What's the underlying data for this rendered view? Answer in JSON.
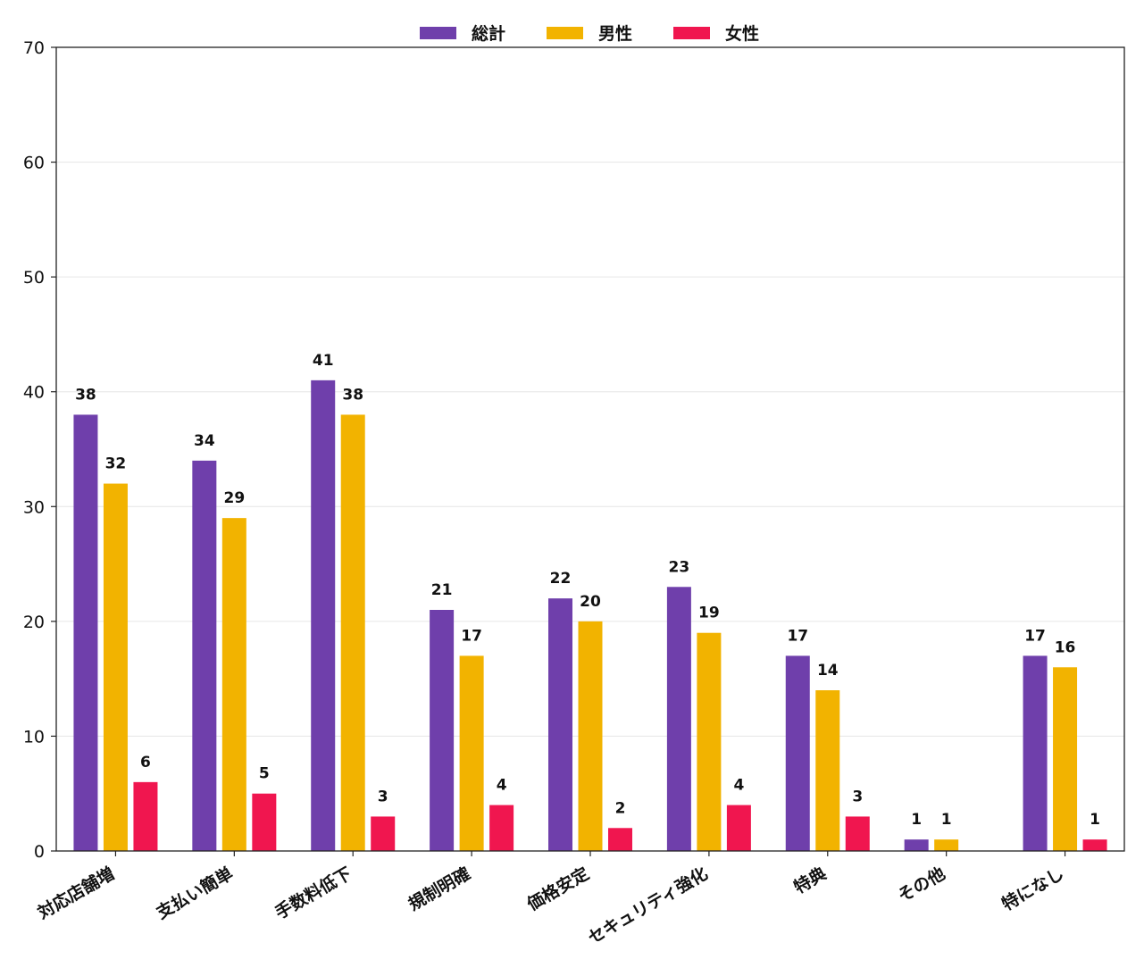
{
  "chart_data": {
    "type": "bar",
    "title": "",
    "xlabel": "",
    "ylabel": "",
    "categories": [
      "対応店舗増",
      "支払い簡単",
      "手数料低下",
      "規制明確",
      "価格安定",
      "セキュリティ強化",
      "特典",
      "その他",
      "特になし"
    ],
    "series": [
      {
        "name": "総計",
        "color": "#6f3fab",
        "values": [
          38,
          34,
          41,
          21,
          22,
          23,
          17,
          1,
          17
        ]
      },
      {
        "name": "男性",
        "color": "#f2b300",
        "values": [
          32,
          29,
          38,
          17,
          20,
          19,
          14,
          1,
          16
        ]
      },
      {
        "name": "女性",
        "color": "#f0164f",
        "values": [
          6,
          5,
          3,
          4,
          2,
          4,
          3,
          0,
          1
        ]
      }
    ],
    "ylim": [
      0,
      70
    ],
    "yticks": [
      0,
      10,
      20,
      30,
      40,
      50,
      60,
      70
    ],
    "grid": true,
    "legend_position": "top-center"
  }
}
